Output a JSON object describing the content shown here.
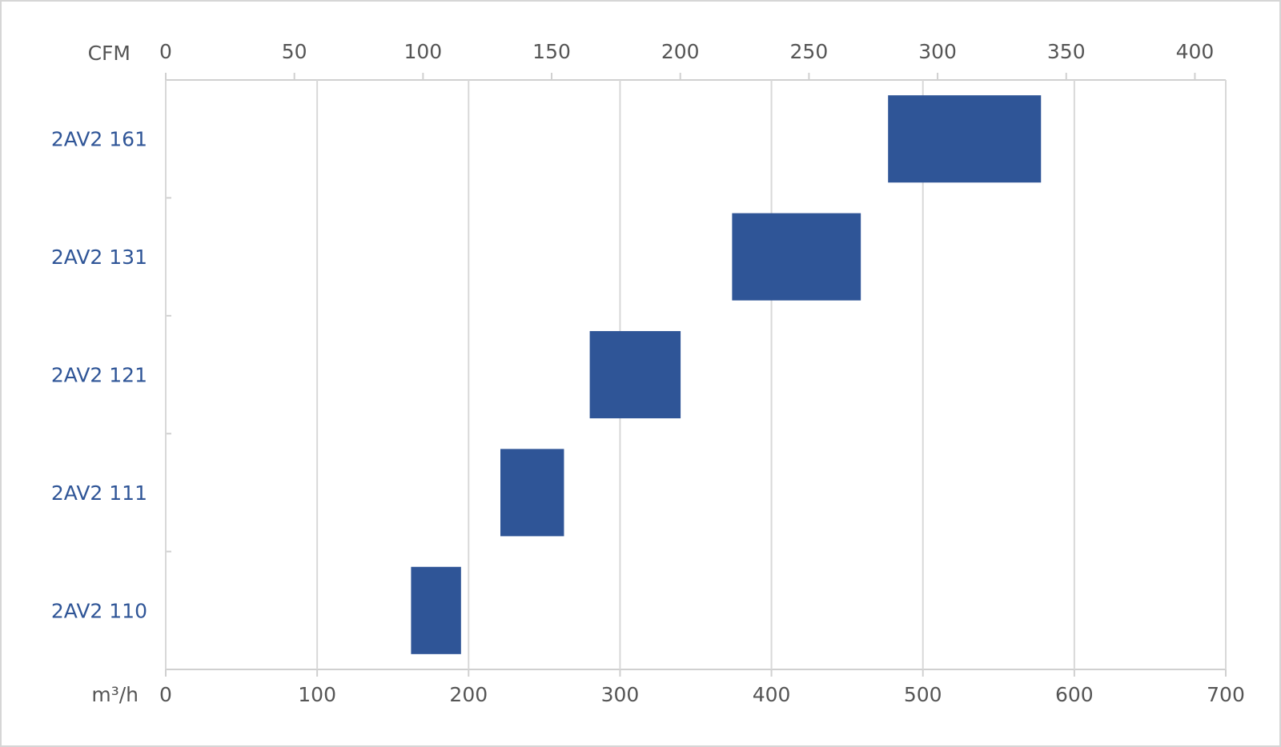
{
  "chart_data": {
    "type": "floating-bar",
    "categories": [
      "2AV2 161",
      "2AV2 131",
      "2AV2 121",
      "2AV2 111",
      "2AV2 110"
    ],
    "low": [
      477,
      374,
      280,
      221,
      162
    ],
    "high": [
      578,
      459,
      340,
      263,
      195
    ],
    "color": "#2f5597",
    "x_label": "m³/h",
    "xlim": [
      0,
      700
    ],
    "xticks": [
      0,
      100,
      200,
      300,
      400,
      500,
      600,
      700
    ],
    "x2_label": "CFM",
    "x2lim": [
      0,
      412
    ],
    "x2ticks": [
      0,
      50,
      100,
      150,
      200,
      250,
      300,
      350,
      400
    ],
    "grid": true
  }
}
